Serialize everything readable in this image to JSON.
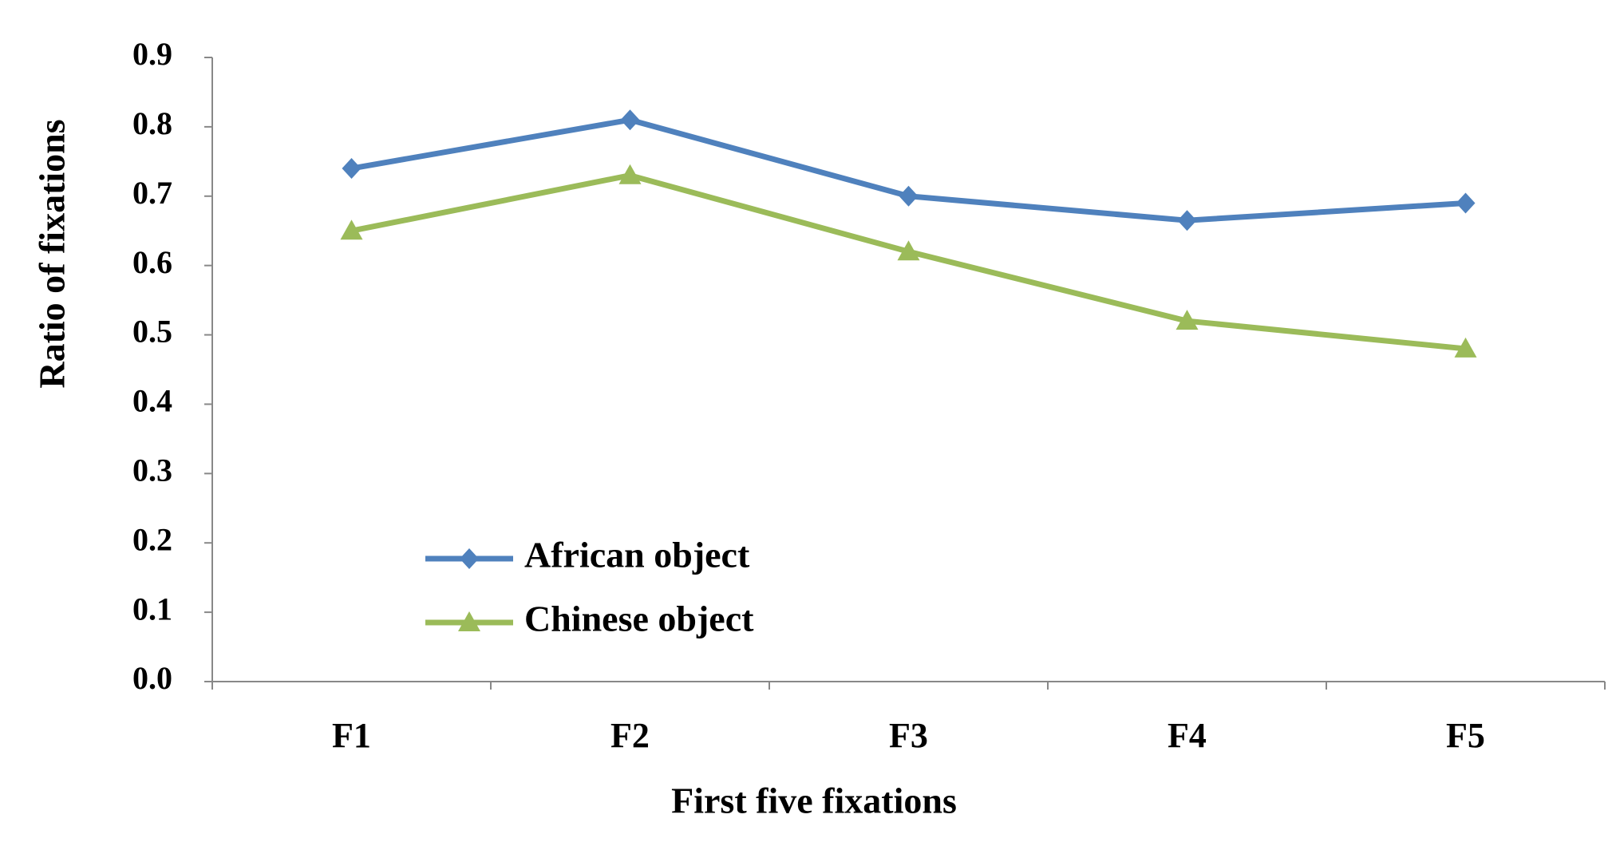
{
  "chart_data": {
    "type": "line",
    "x_label": "First five fixations",
    "y_label": "Ratio of fixations",
    "categories": [
      "F1",
      "F2",
      "F3",
      "F4",
      "F5"
    ],
    "series": [
      {
        "name": "African object",
        "color": "#4f81bd",
        "marker": "diamond",
        "values": [
          0.74,
          0.81,
          0.7,
          0.665,
          0.69
        ]
      },
      {
        "name": "Chinese object",
        "color": "#9bbb59",
        "marker": "triangle",
        "values": [
          0.65,
          0.73,
          0.62,
          0.52,
          0.48
        ]
      }
    ],
    "ylim": [
      0,
      0.9
    ],
    "yticks": [
      {
        "value": 0,
        "label": "0.0"
      },
      0.1,
      0.2,
      0.3,
      0.4,
      0.5,
      0.6,
      0.7,
      0.8,
      0.9
    ],
    "grid": false,
    "legend": "lower left"
  }
}
